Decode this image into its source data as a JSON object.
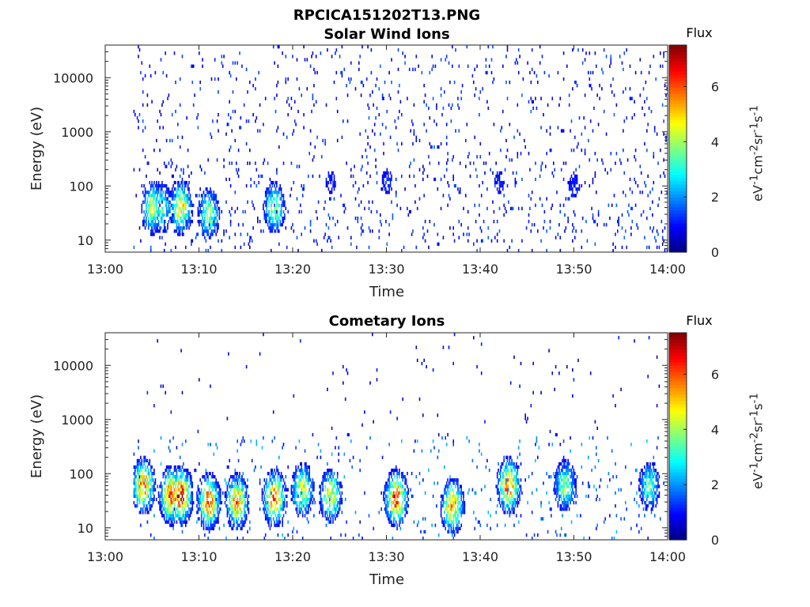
{
  "figure": {
    "title": "RPCICA151202T13.PNG"
  },
  "chart_data": [
    {
      "type": "heatmap",
      "title": "Solar Wind Ions",
      "xlabel": "Time",
      "ylabel": "Energy (eV)",
      "x_range": [
        "13:00",
        "14:00"
      ],
      "x_ticks": [
        "13:00",
        "13:10",
        "13:20",
        "13:30",
        "13:40",
        "13:50",
        "14:00"
      ],
      "y_scale": "log",
      "y_range": [
        6,
        40000
      ],
      "y_ticks": [
        10,
        100,
        1000,
        10000
      ],
      "y_tick_labels": [
        "10",
        "100",
        "1000",
        "10000"
      ],
      "colorbar": {
        "label": "Flux",
        "unit_html": "eV<sup>-1</sup>cm<sup>-2</sup>sr<sup>-1</sup>s<sup>-1</sup>",
        "min": 0,
        "max": 7.5,
        "ticks": [
          0,
          2,
          4,
          6
        ],
        "colormap": "jet"
      },
      "data_start": "13:03",
      "features": [
        {
          "t": "13:05",
          "energy": 40,
          "flux": 4.5
        },
        {
          "t": "13:06",
          "energy": 40,
          "flux": 3.5
        },
        {
          "t": "13:08",
          "energy": 40,
          "flux": 5.0
        },
        {
          "t": "13:11",
          "energy": 30,
          "flux": 4.0
        },
        {
          "t": "13:18",
          "energy": 40,
          "flux": 4.0
        },
        {
          "t": "13:24",
          "energy": 120,
          "flux": 1.2
        },
        {
          "t": "13:30",
          "energy": 120,
          "flux": 1.3
        },
        {
          "t": "13:42",
          "energy": 120,
          "flux": 1.2
        },
        {
          "t": "13:50",
          "energy": 100,
          "flux": 1.3
        }
      ]
    },
    {
      "type": "heatmap",
      "title": "Cometary Ions",
      "xlabel": "Time",
      "ylabel": "Energy (eV)",
      "x_range": [
        "13:00",
        "14:00"
      ],
      "x_ticks": [
        "13:00",
        "13:10",
        "13:20",
        "13:30",
        "13:40",
        "13:50",
        "14:00"
      ],
      "y_scale": "log",
      "y_range": [
        6,
        40000
      ],
      "y_ticks": [
        10,
        100,
        1000,
        10000
      ],
      "y_tick_labels": [
        "10",
        "100",
        "1000",
        "10000"
      ],
      "colorbar": {
        "label": "Flux",
        "unit_html": "eV<sup>-1</sup>cm<sup>-2</sup>sr<sup>-1</sup>s<sup>-1</sup>",
        "min": 0,
        "max": 7.5,
        "ticks": [
          0,
          2,
          4,
          6
        ],
        "colormap": "jet"
      },
      "data_start": "13:03",
      "features": [
        {
          "t": "13:04",
          "energy": 60,
          "flux": 6.0
        },
        {
          "t": "13:07",
          "energy": 40,
          "flux": 6.8
        },
        {
          "t": "13:08",
          "energy": 40,
          "flux": 7.0
        },
        {
          "t": "13:11",
          "energy": 30,
          "flux": 6.2
        },
        {
          "t": "13:14",
          "energy": 30,
          "flux": 5.8
        },
        {
          "t": "13:18",
          "energy": 35,
          "flux": 6.3
        },
        {
          "t": "13:21",
          "energy": 50,
          "flux": 4.8
        },
        {
          "t": "13:24",
          "energy": 40,
          "flux": 4.8
        },
        {
          "t": "13:31",
          "energy": 35,
          "flux": 6.6
        },
        {
          "t": "13:37",
          "energy": 25,
          "flux": 5.8
        },
        {
          "t": "13:43",
          "energy": 60,
          "flux": 6.0
        },
        {
          "t": "13:49",
          "energy": 60,
          "flux": 4.0
        },
        {
          "t": "13:58",
          "energy": 60,
          "flux": 3.5
        }
      ]
    }
  ]
}
